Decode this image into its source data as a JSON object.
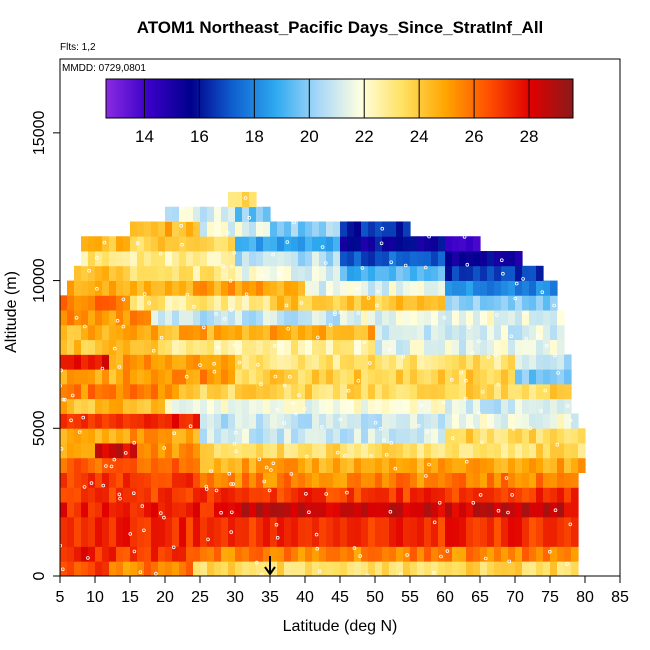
{
  "chart_data": {
    "type": "heatmap",
    "title": "ATOM1 Northeast_Pacific Days_Since_StratInf_All",
    "flights_note": "Flts: 1,2",
    "date_note": "MMDD: 0729,0801",
    "xlabel": "Latitude (deg N)",
    "ylabel": "Altitude (m)",
    "xlim": [
      5,
      85
    ],
    "ylim": [
      0,
      17500
    ],
    "x_ticks": [
      "5",
      "10",
      "15",
      "20",
      "25",
      "30",
      "35",
      "40",
      "45",
      "50",
      "55",
      "60",
      "65",
      "70",
      "75",
      "80",
      "85"
    ],
    "y_ticks": [
      "0",
      "5000",
      "10000",
      "15000"
    ],
    "colorbar": {
      "range": [
        12.6,
        29.6
      ],
      "tick_values": [
        14,
        16,
        18,
        20,
        22,
        24,
        26,
        28
      ],
      "tick_labels": [
        "14",
        "16",
        "18",
        "20",
        "22",
        "24",
        "26",
        "28"
      ],
      "colors": [
        "#8a2be2",
        "#3a00c8",
        "#00008b",
        "#1060d0",
        "#2eaaf0",
        "#a8d8f8",
        "#ffffe0",
        "#ffe060",
        "#ffa500",
        "#ff5000",
        "#e00000",
        "#8b1a1a"
      ]
    },
    "marker": {
      "latitude": 35,
      "symbol": "arrow-down"
    },
    "bands": [
      {
        "alt": [
          0,
          500
        ],
        "segments": [
          {
            "lat": [
              5,
              12
            ],
            "value": 26.6
          },
          {
            "lat": [
              12,
              24
            ],
            "value": 25.6
          },
          {
            "lat": [
              24,
              79
            ],
            "value": 23.6
          }
        ]
      },
      {
        "alt": [
          500,
          1000
        ],
        "segments": [
          {
            "lat": [
              5,
              9
            ],
            "value": 27.6
          },
          {
            "lat": [
              9,
              24
            ],
            "value": 27.0
          },
          {
            "lat": [
              24,
              79
            ],
            "value": 25.6
          }
        ]
      },
      {
        "alt": [
          1000,
          2000
        ],
        "segments": [
          {
            "lat": [
              5,
              79
            ],
            "value": 27.2
          }
        ]
      },
      {
        "alt": [
          2000,
          2500
        ],
        "segments": [
          {
            "lat": [
              5,
              30
            ],
            "value": 27.4
          },
          {
            "lat": [
              30,
              79
            ],
            "value": 28.4
          }
        ]
      },
      {
        "alt": [
          2500,
          3000
        ],
        "segments": [
          {
            "lat": [
              5,
              79
            ],
            "value": 27.0
          }
        ]
      },
      {
        "alt": [
          3000,
          3500
        ],
        "segments": [
          {
            "lat": [
              5,
              25
            ],
            "value": 26.8
          },
          {
            "lat": [
              25,
              79
            ],
            "value": 25.6
          }
        ]
      },
      {
        "alt": [
          3500,
          4000
        ],
        "segments": [
          {
            "lat": [
              5,
              25
            ],
            "value": 26.0
          },
          {
            "lat": [
              25,
              80
            ],
            "value": 24.8
          }
        ]
      },
      {
        "alt": [
          4000,
          4500
        ],
        "segments": [
          {
            "lat": [
              5,
              10
            ],
            "value": 25.0
          },
          {
            "lat": [
              10,
              16
            ],
            "value": 28.2
          },
          {
            "lat": [
              16,
              25
            ],
            "value": 25.4
          },
          {
            "lat": [
              25,
              80
            ],
            "value": 23.4
          }
        ]
      },
      {
        "alt": [
          4500,
          5000
        ],
        "segments": [
          {
            "lat": [
              5,
              25
            ],
            "value": 25.0
          },
          {
            "lat": [
              25,
              60
            ],
            "value": 21.0
          },
          {
            "lat": [
              60,
              80
            ],
            "value": 23.6
          }
        ]
      },
      {
        "alt": [
          5000,
          5500
        ],
        "segments": [
          {
            "lat": [
              5,
              25
            ],
            "value": 27.4
          },
          {
            "lat": [
              25,
              60
            ],
            "value": 20.8
          },
          {
            "lat": [
              60,
              79
            ],
            "value": 21.6
          }
        ]
      },
      {
        "alt": [
          5500,
          6000
        ],
        "segments": [
          {
            "lat": [
              5,
              20
            ],
            "value": 24.4
          },
          {
            "lat": [
              20,
              60
            ],
            "value": 21.8
          },
          {
            "lat": [
              60,
              78
            ],
            "value": 21.0
          }
        ]
      },
      {
        "alt": [
          6000,
          6500
        ],
        "segments": [
          {
            "lat": [
              5,
              22
            ],
            "value": 25.6
          },
          {
            "lat": [
              22,
              78
            ],
            "value": 23.6
          }
        ]
      },
      {
        "alt": [
          6500,
          7000
        ],
        "segments": [
          {
            "lat": [
              5,
              14
            ],
            "value": 24.6
          },
          {
            "lat": [
              14,
              30
            ],
            "value": 25.2
          },
          {
            "lat": [
              30,
              70
            ],
            "value": 23.8
          },
          {
            "lat": [
              70,
              78
            ],
            "value": 19.6
          }
        ]
      },
      {
        "alt": [
          7000,
          7500
        ],
        "segments": [
          {
            "lat": [
              5,
              12
            ],
            "value": 27.6
          },
          {
            "lat": [
              12,
              30
            ],
            "value": 25.0
          },
          {
            "lat": [
              30,
              70
            ],
            "value": 23.2
          },
          {
            "lat": [
              70,
              78
            ],
            "value": 20.8
          }
        ]
      },
      {
        "alt": [
          7500,
          8000
        ],
        "segments": [
          {
            "lat": [
              5,
              20
            ],
            "value": 24.2
          },
          {
            "lat": [
              20,
              50
            ],
            "value": 22.6
          },
          {
            "lat": [
              50,
              77
            ],
            "value": 21.4
          }
        ]
      },
      {
        "alt": [
          8000,
          8500
        ],
        "segments": [
          {
            "lat": [
              5,
              25
            ],
            "value": 24.6
          },
          {
            "lat": [
              25,
              50
            ],
            "value": 24.8
          },
          {
            "lat": [
              50,
              77
            ],
            "value": 21.2
          }
        ]
      },
      {
        "alt": [
          8500,
          9000
        ],
        "segments": [
          {
            "lat": [
              5,
              18
            ],
            "value": 25.2
          },
          {
            "lat": [
              18,
              45
            ],
            "value": 20.8
          },
          {
            "lat": [
              45,
              77
            ],
            "value": 21.6
          }
        ]
      },
      {
        "alt": [
          9000,
          9500
        ],
        "segments": [
          {
            "lat": [
              5,
              15
            ],
            "value": 26.0
          },
          {
            "lat": [
              15,
              35
            ],
            "value": 23.0
          },
          {
            "lat": [
              35,
              60
            ],
            "value": 24.0
          },
          {
            "lat": [
              60,
              76
            ],
            "value": 20.0
          }
        ]
      },
      {
        "alt": [
          9500,
          10000
        ],
        "segments": [
          {
            "lat": [
              6,
              20
            ],
            "value": 24.8
          },
          {
            "lat": [
              20,
              40
            ],
            "value": 25.0
          },
          {
            "lat": [
              40,
              60
            ],
            "value": 21.4
          },
          {
            "lat": [
              60,
              76
            ],
            "value": 18.2
          }
        ]
      },
      {
        "alt": [
          10000,
          10500
        ],
        "segments": [
          {
            "lat": [
              7,
              15
            ],
            "value": 24.6
          },
          {
            "lat": [
              15,
              30
            ],
            "value": 23.0
          },
          {
            "lat": [
              30,
              45
            ],
            "value": 21.6
          },
          {
            "lat": [
              45,
              60
            ],
            "value": 19.2
          },
          {
            "lat": [
              60,
              74
            ],
            "value": 16.6
          }
        ]
      },
      {
        "alt": [
          10500,
          11000
        ],
        "segments": [
          {
            "lat": [
              8,
              18
            ],
            "value": 23.0
          },
          {
            "lat": [
              18,
              30
            ],
            "value": 22.6
          },
          {
            "lat": [
              30,
              45
            ],
            "value": 20.6
          },
          {
            "lat": [
              45,
              60
            ],
            "value": 17.2
          },
          {
            "lat": [
              60,
              71
            ],
            "value": 15.4
          }
        ]
      },
      {
        "alt": [
          11000,
          11500
        ],
        "segments": [
          {
            "lat": [
              8,
              15
            ],
            "value": 24.4
          },
          {
            "lat": [
              15,
              30
            ],
            "value": 23.8
          },
          {
            "lat": [
              30,
              45
            ],
            "value": 18.8
          },
          {
            "lat": [
              45,
              60
            ],
            "value": 15.6
          },
          {
            "lat": [
              60,
              65
            ],
            "value": 14.4
          }
        ]
      },
      {
        "alt": [
          11500,
          12000
        ],
        "segments": [
          {
            "lat": [
              15,
              25
            ],
            "value": 24.6
          },
          {
            "lat": [
              25,
              35
            ],
            "value": 21.4
          },
          {
            "lat": [
              35,
              45
            ],
            "value": 20.0
          },
          {
            "lat": [
              45,
              55
            ],
            "value": 16.4
          }
        ]
      },
      {
        "alt": [
          12000,
          12500
        ],
        "segments": [
          {
            "lat": [
              20,
              30
            ],
            "value": 21.2
          },
          {
            "lat": [
              30,
              35
            ],
            "value": 19.8
          }
        ]
      },
      {
        "alt": [
          12500,
          13000
        ],
        "segments": [
          {
            "lat": [
              29,
              33
            ],
            "value": 23.4
          }
        ]
      }
    ]
  }
}
